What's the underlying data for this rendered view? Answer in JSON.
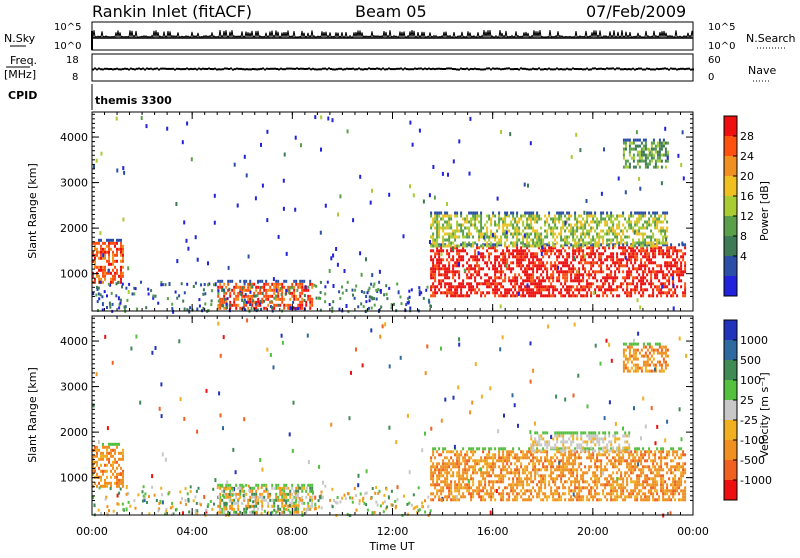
{
  "header": {
    "station": "Rankin Inlet (fitACF)",
    "beam": "Beam 05",
    "date": "07/Feb/2009"
  },
  "strip_nsky": {
    "label": "N.Sky",
    "tick_top": "10^5",
    "tick_bottom": "10^0",
    "right_tick_top": "10^5",
    "right_tick_bottom": "10^0",
    "right_label": "N.Search"
  },
  "strip_freq": {
    "label": "Freq.",
    "unit": "[MHz]",
    "tick_top": "18",
    "tick_bottom": "8",
    "right_tick_top": "60",
    "right_tick_bottom": "0",
    "right_label": "Nave"
  },
  "cpid": {
    "label": "CPID",
    "mode": "themis 3300"
  },
  "chart_data": [
    {
      "type": "heatmap",
      "parameter": "Power",
      "ylabel": "Slant Range [km]",
      "xlabel": "",
      "x_unit": "hours UT",
      "xlim": [
        0,
        24
      ],
      "ylim": [
        180,
        4550
      ],
      "yticks": [
        "1000",
        "2000",
        "3000",
        "4000"
      ],
      "colorbar": {
        "label": "Power [dB]",
        "ticks": [
          "4",
          "8",
          "12",
          "16",
          "20",
          "24",
          "28"
        ],
        "colors": [
          "#2222dd",
          "#2b4fa6",
          "#3d7a55",
          "#5aa04a",
          "#aacc33",
          "#f0c020",
          "#f09020",
          "#ff5010",
          "#ee1010"
        ]
      },
      "dominant_regions": [
        {
          "x": [
            0.0,
            1.3
          ],
          "y": [
            800,
            1700
          ],
          "level": "orange-red"
        },
        {
          "x": [
            5.0,
            8.8
          ],
          "y": [
            200,
            800
          ],
          "level": "orange-red"
        },
        {
          "x": [
            13.5,
            23.7
          ],
          "y": [
            500,
            1600
          ],
          "level": "red"
        },
        {
          "x": [
            13.5,
            23.0
          ],
          "y": [
            1600,
            2300
          ],
          "level": "green-yellow"
        },
        {
          "x": [
            21.2,
            23.0
          ],
          "y": [
            3300,
            3900
          ],
          "level": "green"
        }
      ]
    },
    {
      "type": "heatmap",
      "parameter": "Velocity",
      "ylabel": "Slant Range [km]",
      "xlabel": "Time UT",
      "x_unit": "hours UT",
      "xlim": [
        0,
        24
      ],
      "ylim": [
        180,
        4550
      ],
      "xticks": [
        "00:00",
        "04:00",
        "08:00",
        "12:00",
        "16:00",
        "20:00",
        "00:00"
      ],
      "yticks": [
        "1000",
        "2000",
        "3000",
        "4000"
      ],
      "colorbar": {
        "label": "Velocity [m s⁻¹]",
        "ticks": [
          "1000",
          "500",
          "100",
          "25",
          "-25",
          "-100",
          "-500",
          "-1000"
        ],
        "colors": [
          "#2233bb",
          "#2e6aa0",
          "#3f8a55",
          "#55c040",
          "#c8c8c8",
          "#f0b020",
          "#f09020",
          "#f06020",
          "#ee1010"
        ]
      },
      "dominant_regions": [
        {
          "x": [
            0.0,
            1.3
          ],
          "y": [
            800,
            1700
          ],
          "level": "orange"
        },
        {
          "x": [
            5.0,
            8.8
          ],
          "y": [
            200,
            800
          ],
          "level": "green-orange"
        },
        {
          "x": [
            13.5,
            23.7
          ],
          "y": [
            500,
            1600
          ],
          "level": "orange"
        },
        {
          "x": [
            17.5,
            21.5
          ],
          "y": [
            1550,
            1950
          ],
          "level": "grey"
        },
        {
          "x": [
            21.2,
            23.0
          ],
          "y": [
            3300,
            3900
          ],
          "level": "orange"
        }
      ]
    }
  ]
}
